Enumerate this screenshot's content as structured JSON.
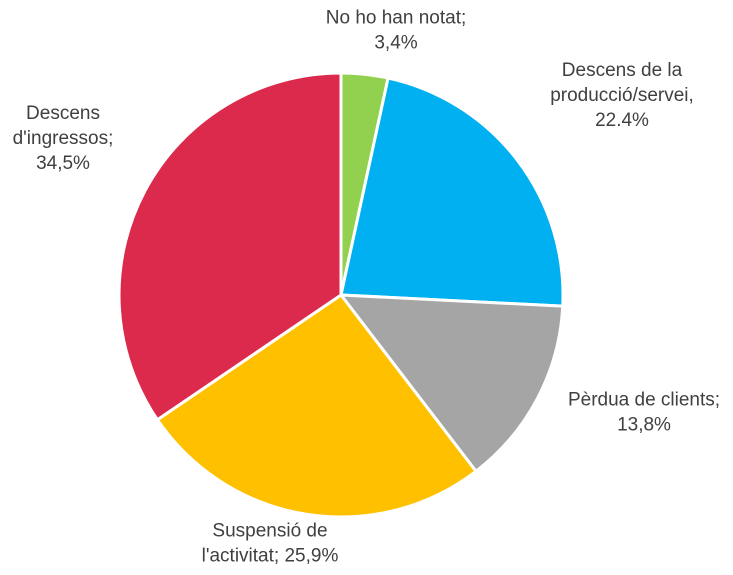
{
  "chart_data": {
    "type": "pie",
    "title": "",
    "slices": [
      {
        "label_lines": [
          "No ho han notat;",
          "3,4%"
        ],
        "value": 3.4,
        "color": "#92D050"
      },
      {
        "label_lines": [
          "Descens de la",
          "producció/servei,",
          "22.4%"
        ],
        "value": 22.4,
        "color": "#00B0F0"
      },
      {
        "label_lines": [
          "Pèrdua de clients;",
          "13,8%"
        ],
        "value": 13.8,
        "color": "#A5A5A5"
      },
      {
        "label_lines": [
          "Suspensió de",
          "l'activitat; 25,9%"
        ],
        "value": 25.9,
        "color": "#FFC000"
      },
      {
        "label_lines": [
          "Descens",
          "d'ingressos;",
          "34,5%"
        ],
        "value": 34.5,
        "color": "#DB2A4C"
      }
    ],
    "start": "12 o'clock",
    "direction": "clockwise",
    "legend": "none"
  }
}
